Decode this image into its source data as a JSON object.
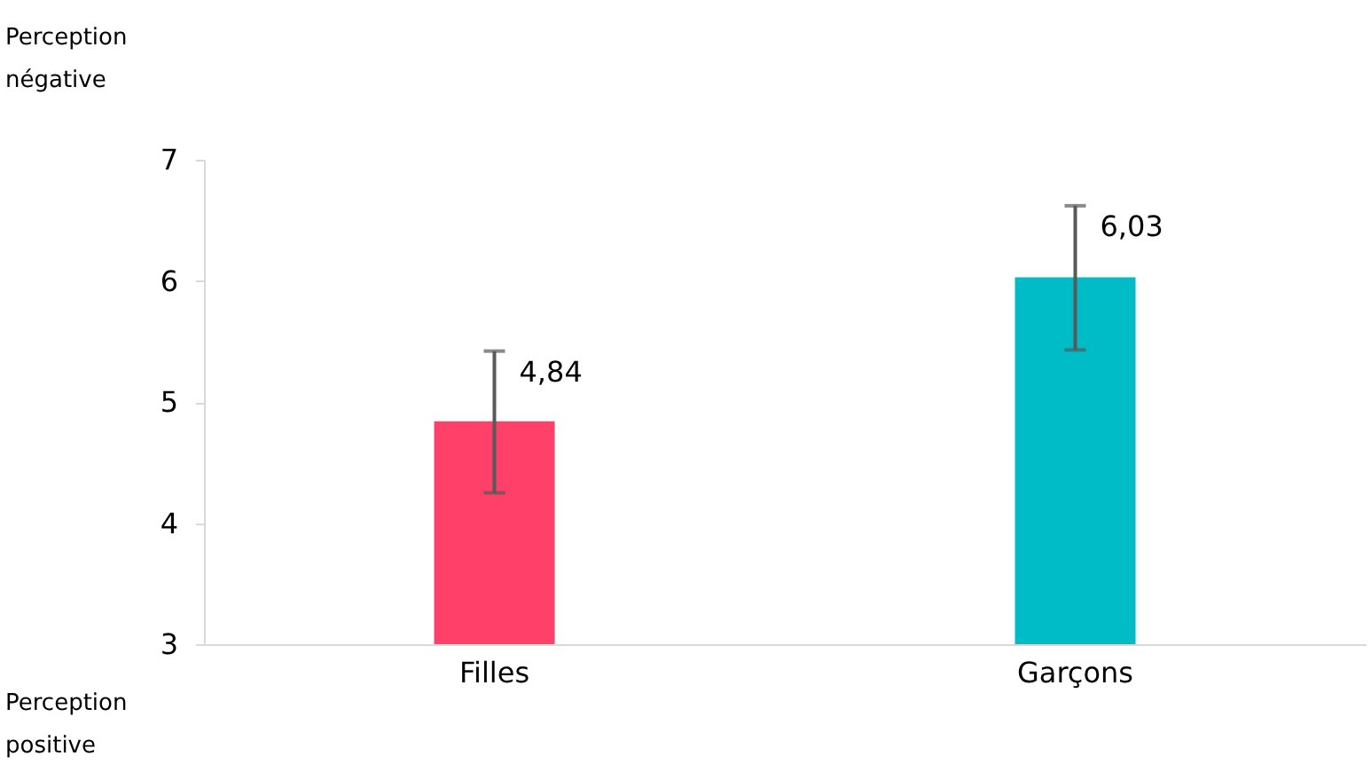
{
  "chart_data": {
    "type": "bar",
    "categories": [
      "Filles",
      "Garçons"
    ],
    "values": [
      4.84,
      6.03
    ],
    "colors": [
      "#ff4069",
      "#00bcc6"
    ],
    "errors": [
      [
        4.25,
        5.42
      ],
      [
        5.43,
        6.62
      ]
    ],
    "value_labels": [
      "4,84",
      "6,03"
    ],
    "ylim": [
      3,
      7
    ],
    "yticks": [
      3,
      4,
      5,
      6,
      7
    ],
    "grid": false,
    "annotations": [
      "Perception négative",
      "Perception positive"
    ]
  }
}
